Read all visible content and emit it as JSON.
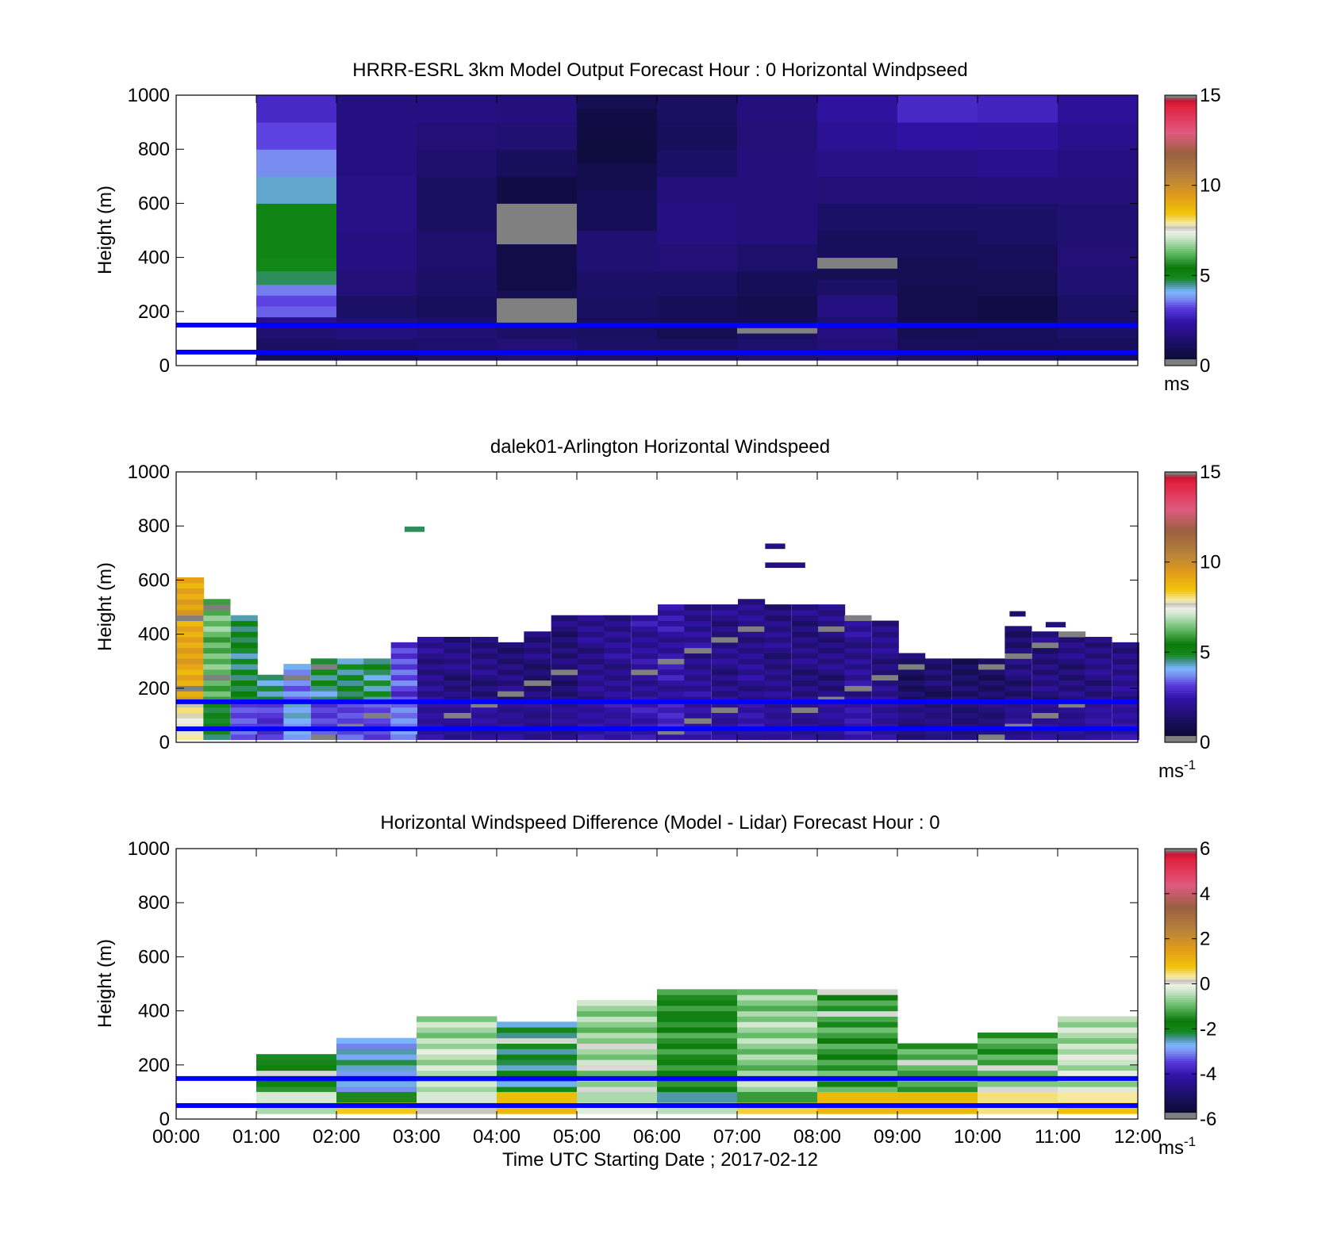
{
  "figure": {
    "xlabel": "Time UTC  Starting Date ; 2017-02-12",
    "x_ticks": [
      "00:00",
      "01:00",
      "02:00",
      "03:00",
      "04:00",
      "05:00",
      "06:00",
      "07:00",
      "08:00",
      "09:00",
      "10:00",
      "11:00",
      "12:00"
    ]
  },
  "chart_data": [
    {
      "type": "heatmap",
      "title": "HRRR-ESRL 3km Model Output   Forecast Hour : 0 Horizontal Windpseed",
      "ylabel": "Height (m)",
      "xlim": [
        0,
        12
      ],
      "ylim": [
        0,
        1000
      ],
      "y_ticks": [
        "0",
        "200",
        "400",
        "600",
        "800",
        "1000"
      ],
      "colorbar": {
        "min": 0,
        "max": 15,
        "ticks": [
          "0",
          "5",
          "10",
          "15"
        ],
        "unit": "ms",
        "unit_sup": ""
      },
      "reference_lines_m": [
        50,
        150
      ],
      "x_hours": [
        1,
        2,
        3,
        4,
        5,
        6,
        7,
        8,
        9,
        10,
        11
      ],
      "cells": [
        [
          [
            20,
            60,
            0.6
          ],
          [
            60,
            100,
            0.9
          ],
          [
            100,
            140,
            1.2
          ],
          [
            140,
            180,
            1.6
          ],
          [
            180,
            220,
            3.2
          ],
          [
            220,
            260,
            3.0
          ],
          [
            260,
            300,
            3.4
          ],
          [
            300,
            350,
            4.5
          ],
          [
            350,
            400,
            4.8
          ],
          [
            400,
            600,
            4.9
          ],
          [
            600,
            700,
            4.1
          ],
          [
            700,
            800,
            3.5
          ],
          [
            800,
            900,
            3.0
          ],
          [
            900,
            1000,
            2.6
          ]
        ],
        [
          [
            20,
            60,
            0.8
          ],
          [
            60,
            100,
            1.0
          ],
          [
            100,
            140,
            1.4
          ],
          [
            140,
            180,
            1.2
          ],
          [
            180,
            260,
            1.0
          ],
          [
            260,
            350,
            1.3
          ],
          [
            350,
            500,
            1.5
          ],
          [
            500,
            700,
            1.6
          ],
          [
            700,
            900,
            1.5
          ],
          [
            900,
            1000,
            1.5
          ]
        ],
        [
          [
            20,
            60,
            1.0
          ],
          [
            60,
            100,
            1.1
          ],
          [
            100,
            140,
            1.2
          ],
          [
            140,
            180,
            1.0
          ],
          [
            180,
            260,
            0.8
          ],
          [
            260,
            350,
            1.0
          ],
          [
            350,
            500,
            1.1
          ],
          [
            500,
            700,
            0.9
          ],
          [
            700,
            800,
            1.1
          ],
          [
            800,
            900,
            1.3
          ],
          [
            900,
            1000,
            1.5
          ]
        ],
        [
          [
            20,
            60,
            1.2
          ],
          [
            60,
            100,
            1.3
          ],
          [
            100,
            160,
            1.0
          ],
          [
            160,
            250,
            -1
          ],
          [
            250,
            280,
            0.6
          ],
          [
            280,
            350,
            0.4
          ],
          [
            350,
            450,
            0.4
          ],
          [
            450,
            600,
            -1
          ],
          [
            600,
            700,
            0.3
          ],
          [
            700,
            800,
            0.8
          ],
          [
            800,
            900,
            1.2
          ],
          [
            900,
            1000,
            1.4
          ]
        ],
        [
          [
            20,
            60,
            1.1
          ],
          [
            60,
            100,
            1.0
          ],
          [
            100,
            140,
            0.9
          ],
          [
            140,
            180,
            0.8
          ],
          [
            180,
            260,
            0.9
          ],
          [
            260,
            350,
            1.0
          ],
          [
            350,
            500,
            1.2
          ],
          [
            500,
            650,
            0.7
          ],
          [
            650,
            750,
            0.5
          ],
          [
            750,
            850,
            0.2
          ],
          [
            850,
            950,
            0.3
          ],
          [
            950,
            1000,
            0.6
          ]
        ],
        [
          [
            20,
            60,
            1.0
          ],
          [
            60,
            100,
            0.9
          ],
          [
            100,
            140,
            0.6
          ],
          [
            140,
            180,
            0.6
          ],
          [
            180,
            260,
            0.7
          ],
          [
            260,
            350,
            1.0
          ],
          [
            350,
            450,
            1.3
          ],
          [
            450,
            600,
            1.5
          ],
          [
            600,
            700,
            1.4
          ],
          [
            700,
            800,
            1.0
          ],
          [
            800,
            900,
            0.8
          ],
          [
            900,
            1000,
            0.9
          ]
        ],
        [
          [
            20,
            60,
            1.2
          ],
          [
            60,
            100,
            1.1
          ],
          [
            100,
            120,
            0.9
          ],
          [
            120,
            140,
            -1
          ],
          [
            140,
            180,
            0.6
          ],
          [
            180,
            260,
            0.5
          ],
          [
            260,
            350,
            0.7
          ],
          [
            350,
            450,
            1.1
          ],
          [
            450,
            600,
            1.4
          ],
          [
            600,
            800,
            1.4
          ],
          [
            800,
            900,
            1.3
          ],
          [
            900,
            1000,
            1.4
          ]
        ],
        [
          [
            20,
            60,
            1.4
          ],
          [
            60,
            100,
            1.3
          ],
          [
            100,
            140,
            1.5
          ],
          [
            140,
            180,
            1.1
          ],
          [
            180,
            260,
            1.5
          ],
          [
            260,
            320,
            1.0
          ],
          [
            320,
            360,
            0.6
          ],
          [
            360,
            400,
            -1
          ],
          [
            400,
            500,
            0.8
          ],
          [
            500,
            600,
            1.0
          ],
          [
            600,
            700,
            1.3
          ],
          [
            700,
            800,
            1.6
          ],
          [
            800,
            900,
            1.8
          ],
          [
            900,
            1000,
            2.0
          ]
        ],
        [
          [
            20,
            60,
            1.0
          ],
          [
            60,
            100,
            0.8
          ],
          [
            100,
            140,
            0.6
          ],
          [
            140,
            180,
            0.4
          ],
          [
            180,
            300,
            0.5
          ],
          [
            300,
            400,
            0.6
          ],
          [
            400,
            500,
            0.8
          ],
          [
            500,
            600,
            1.0
          ],
          [
            600,
            700,
            1.3
          ],
          [
            700,
            800,
            1.6
          ],
          [
            800,
            900,
            2.1
          ],
          [
            900,
            1000,
            2.6
          ]
        ],
        [
          [
            20,
            60,
            0.9
          ],
          [
            60,
            100,
            0.7
          ],
          [
            100,
            140,
            0.8
          ],
          [
            140,
            180,
            0.3
          ],
          [
            180,
            260,
            0.3
          ],
          [
            260,
            350,
            0.6
          ],
          [
            350,
            450,
            0.8
          ],
          [
            450,
            600,
            1.0
          ],
          [
            600,
            700,
            1.4
          ],
          [
            700,
            800,
            1.7
          ],
          [
            800,
            900,
            2.0
          ],
          [
            900,
            1000,
            2.5
          ]
        ],
        [
          [
            20,
            60,
            0.7
          ],
          [
            60,
            100,
            0.8
          ],
          [
            100,
            140,
            1.0
          ],
          [
            140,
            180,
            0.9
          ],
          [
            180,
            260,
            1.0
          ],
          [
            260,
            350,
            1.2
          ],
          [
            350,
            450,
            1.3
          ],
          [
            450,
            600,
            1.2
          ],
          [
            600,
            700,
            1.4
          ],
          [
            700,
            800,
            1.5
          ],
          [
            800,
            900,
            1.7
          ],
          [
            900,
            1000,
            1.9
          ]
        ]
      ]
    },
    {
      "type": "heatmap",
      "title": "dalek01-Arlington  Horizontal Windspeed",
      "ylabel": "Height (m)",
      "xlim": [
        0,
        12
      ],
      "ylim": [
        0,
        1000
      ],
      "y_ticks": [
        "0",
        "200",
        "400",
        "600",
        "800",
        "1000"
      ],
      "colorbar": {
        "min": 0,
        "max": 15,
        "ticks": [
          "0",
          "5",
          "10",
          "15"
        ],
        "unit": "ms",
        "unit_sup": "-1"
      },
      "reference_lines_m": [
        50,
        150
      ],
      "lidar_profiles": [
        {
          "t": 0.05,
          "top": 600,
          "v": 9.2
        },
        {
          "t": 0.38,
          "top": 520,
          "v": 6.2
        },
        {
          "t": 0.72,
          "top": 460,
          "v": 4.6
        },
        {
          "t": 1.05,
          "top": 250,
          "v": 4.3
        },
        {
          "t": 1.38,
          "top": 290,
          "v": 3.5
        },
        {
          "t": 1.72,
          "top": 300,
          "v": 4.4
        },
        {
          "t": 2.05,
          "top": 300,
          "v": 4.6
        },
        {
          "t": 2.38,
          "top": 300,
          "v": 4.5
        },
        {
          "t": 2.72,
          "top": 360,
          "v": 3.0
        },
        {
          "t": 3.05,
          "top": 380,
          "v": 1.6
        },
        {
          "t": 3.38,
          "top": 390,
          "v": 1.4
        },
        {
          "t": 3.72,
          "top": 380,
          "v": 1.5
        },
        {
          "t": 4.05,
          "top": 370,
          "v": 1.4
        },
        {
          "t": 4.38,
          "top": 400,
          "v": 1.3
        },
        {
          "t": 4.72,
          "top": 460,
          "v": 1.3
        },
        {
          "t": 5.05,
          "top": 470,
          "v": 1.6
        },
        {
          "t": 5.38,
          "top": 470,
          "v": 1.7
        },
        {
          "t": 5.72,
          "top": 470,
          "v": 1.9
        },
        {
          "t": 6.05,
          "top": 500,
          "v": 2.1
        },
        {
          "t": 6.38,
          "top": 500,
          "v": 1.8
        },
        {
          "t": 6.72,
          "top": 510,
          "v": 1.6
        },
        {
          "t": 7.05,
          "top": 520,
          "v": 1.7
        },
        {
          "t": 7.38,
          "top": 500,
          "v": 1.5
        },
        {
          "t": 7.72,
          "top": 500,
          "v": 1.4
        },
        {
          "t": 8.05,
          "top": 500,
          "v": 1.5
        },
        {
          "t": 8.38,
          "top": 470,
          "v": 1.8
        },
        {
          "t": 8.72,
          "top": 440,
          "v": 1.6
        },
        {
          "t": 9.05,
          "top": 330,
          "v": 1.0
        },
        {
          "t": 9.38,
          "top": 300,
          "v": 1.0
        },
        {
          "t": 9.72,
          "top": 300,
          "v": 0.9
        },
        {
          "t": 10.05,
          "top": 310,
          "v": 1.0
        },
        {
          "t": 10.38,
          "top": 420,
          "v": 1.3
        },
        {
          "t": 10.72,
          "top": 400,
          "v": 1.4
        },
        {
          "t": 11.05,
          "top": 400,
          "v": 1.4
        },
        {
          "t": 11.38,
          "top": 380,
          "v": 1.5
        },
        {
          "t": 11.72,
          "top": 370,
          "v": 1.6
        }
      ],
      "isolated_cells": [
        {
          "t0": 2.85,
          "t1": 3.1,
          "h": 788,
          "v": 4.5
        },
        {
          "t0": 7.35,
          "t1": 7.6,
          "h": 725,
          "v": 1.5
        },
        {
          "t0": 7.35,
          "t1": 7.85,
          "h": 655,
          "v": 1.5
        },
        {
          "t0": 10.4,
          "t1": 10.6,
          "h": 475,
          "v": 1.0
        },
        {
          "t0": 10.85,
          "t1": 11.1,
          "h": 435,
          "v": 1.4
        }
      ]
    },
    {
      "type": "heatmap",
      "title": "Horizontal Windspeed Difference (Model - Lidar) Forecast Hour : 0",
      "ylabel": "Height (m)",
      "xlim": [
        0,
        12
      ],
      "ylim": [
        0,
        1000
      ],
      "y_ticks": [
        "0",
        "200",
        "400",
        "600",
        "800",
        "1000"
      ],
      "colorbar": {
        "min": -6,
        "max": 6,
        "ticks": [
          "-6",
          "-4",
          "-2",
          "0",
          "2",
          "4",
          "6"
        ],
        "unit": "ms",
        "unit_sup": "-1"
      },
      "reference_lines_m": [
        50,
        150
      ],
      "x_hours": [
        1,
        2,
        3,
        4,
        5,
        6,
        7,
        8,
        9,
        10,
        11
      ],
      "profiles": [
        {
          "top": 240,
          "base": -1.8,
          "lowband": [
            [
              60,
              100,
              -0.3
            ],
            [
              20,
              60,
              -0.6
            ]
          ]
        },
        {
          "top": 295,
          "base": -2.8,
          "lowband": [
            [
              60,
              100,
              -1.6
            ],
            [
              20,
              60,
              0.7
            ]
          ]
        },
        {
          "top": 365,
          "base": -0.6,
          "lowband": [
            [
              60,
              100,
              -0.3
            ],
            [
              20,
              60,
              0.1
            ]
          ]
        },
        {
          "top": 360,
          "base": -2.4,
          "lowband": [
            [
              60,
              100,
              0.9
            ],
            [
              20,
              60,
              1.0
            ]
          ]
        },
        {
          "top": 425,
          "base": -0.7,
          "lowband": [
            [
              60,
              100,
              -0.6
            ],
            [
              20,
              60,
              -0.2
            ]
          ]
        },
        {
          "top": 470,
          "base": -1.6,
          "lowband": [
            [
              60,
              100,
              -2.6
            ],
            [
              20,
              60,
              -0.5
            ]
          ]
        },
        {
          "top": 480,
          "base": -0.8,
          "lowband": [
            [
              60,
              100,
              -1.4
            ],
            [
              20,
              60,
              0.6
            ]
          ]
        },
        {
          "top": 480,
          "base": -1.4,
          "lowband": [
            [
              60,
              100,
              1.0
            ],
            [
              20,
              60,
              1.0
            ]
          ]
        },
        {
          "top": 270,
          "base": -1.2,
          "lowband": [
            [
              60,
              100,
              1.0
            ],
            [
              20,
              60,
              1.0
            ]
          ]
        },
        {
          "top": 315,
          "base": -1.2,
          "lowband": [
            [
              60,
              100,
              0.4
            ],
            [
              20,
              60,
              0.4
            ]
          ]
        },
        {
          "top": 380,
          "base": -0.5,
          "lowband": [
            [
              60,
              100,
              0.3
            ],
            [
              20,
              60,
              0.8
            ]
          ]
        }
      ]
    }
  ],
  "colors": {
    "reference_line": "#0000ff",
    "missing_data": "#808080"
  }
}
